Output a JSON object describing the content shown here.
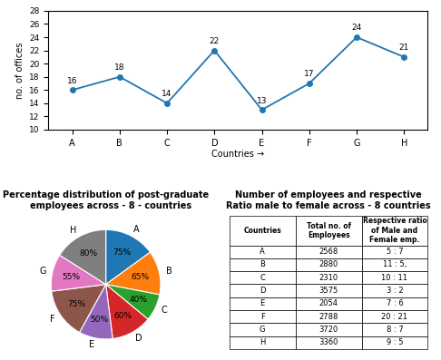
{
  "chart_data": [
    {
      "type": "line",
      "categories": [
        "A",
        "B",
        "C",
        "D",
        "E",
        "F",
        "G",
        "H"
      ],
      "values": [
        16,
        18,
        14,
        22,
        13,
        17,
        24,
        21
      ],
      "xlabel": "Countries →",
      "ylabel": "no. of offices",
      "ylim": [
        10,
        28
      ],
      "yticks": [
        10,
        12,
        14,
        16,
        18,
        20,
        22,
        24,
        26,
        28
      ],
      "marker": "o",
      "data_labels": true
    },
    {
      "type": "pie",
      "title": "Percentage distribution of post-graduate\n   employees across - 8 - countries",
      "categories": [
        "A",
        "B",
        "C",
        "D",
        "E",
        "F",
        "G",
        "H"
      ],
      "values": [
        75,
        65,
        40,
        60,
        50,
        75,
        55,
        80
      ],
      "value_labels": [
        "75%",
        "65%",
        "40%",
        "60%",
        "50%",
        "75%",
        "55%",
        "80%"
      ]
    },
    {
      "type": "table",
      "title": "Number of employees and respective\nRatio male to female across - 8 countries",
      "columns": [
        "Countries",
        "Total no. of\nEmployees",
        "Respective ratio\nof Male and\nFemale emp."
      ],
      "cells": [
        [
          "A",
          "2568",
          "5 : 7"
        ],
        [
          "B",
          "2880",
          "11 : 5,"
        ],
        [
          "C",
          "2310",
          "10 : 11"
        ],
        [
          "D",
          "3575",
          "3 : 2"
        ],
        [
          "E",
          "2054",
          "7 : 6"
        ],
        [
          "F",
          "2788",
          "20 : 21"
        ],
        [
          "G",
          "3720",
          "8 : 7"
        ],
        [
          "H",
          "3360",
          "9 : 5"
        ]
      ]
    }
  ]
}
